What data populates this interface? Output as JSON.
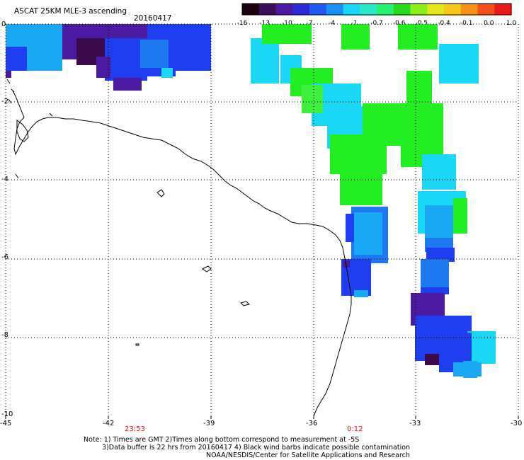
{
  "header": {
    "title": "ASCAT 25KM MLE-3 ascending",
    "date": "20160417"
  },
  "colorbar": {
    "ticks": [
      "-16",
      "-13",
      "-10",
      "-7",
      "-4",
      "-1",
      "-0.7",
      "-0.6",
      "-0.5",
      "-0.4",
      "-0.1",
      "0.0",
      "1.0"
    ],
    "colors": [
      "#1a0010",
      "#3d0f5a",
      "#4a1aa0",
      "#2a2ad8",
      "#1e5af0",
      "#1a90f5",
      "#1ad5f5",
      "#2ae8c8",
      "#2af070",
      "#2ad820",
      "#8cef1a",
      "#e6e61a",
      "#f5c81a",
      "#f5901a",
      "#f5501a",
      "#e81a1a"
    ]
  },
  "map": {
    "lat_labels": [
      "0",
      "-2",
      "-4",
      "-6",
      "-8",
      "-10"
    ],
    "lon_labels": [
      "-45",
      "-42",
      "-39",
      "-36",
      "-33",
      "-30"
    ],
    "time_labels": [
      "23:53",
      "0:12"
    ],
    "overlay_colors": {
      "dark": "#3a0a4a",
      "purple": "#4a1aa0",
      "blue": "#1e3ef0",
      "midblue": "#1e78f0",
      "lightblue": "#1aa8f5",
      "cyan": "#1ad8f5",
      "green": "#22ee22",
      "lightgreen": "#3cf03c"
    }
  },
  "footer": {
    "line1": "Note: 1) Times are GMT 2)Times along bottom correspond to measurement at -5S",
    "line2": "3)Data buffer is 22 hrs from 20160417 4) Black wind barbs indicate possible contamination",
    "line3": "NOAA/NESDIS/Center for Satellite Applications and Research"
  }
}
